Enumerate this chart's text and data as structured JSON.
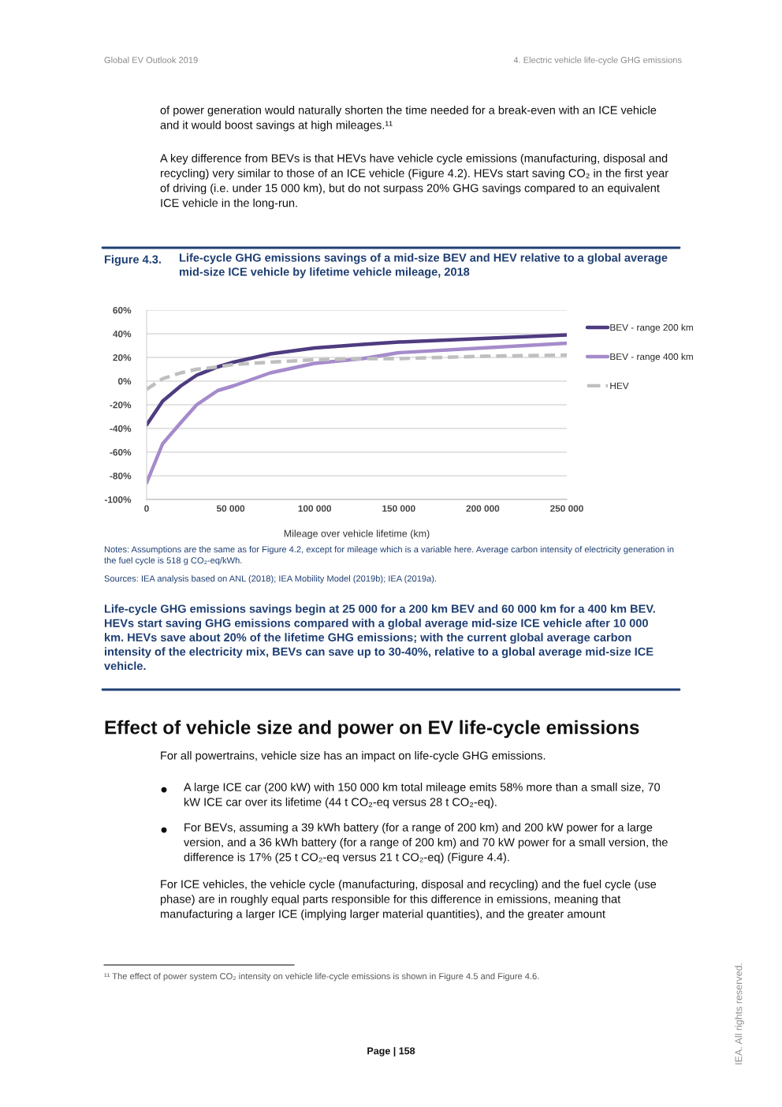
{
  "chart_data": {
    "type": "line",
    "title": "Life-cycle GHG emissions savings of a mid-size BEV and HEV relative to a global average mid-size ICE vehicle by lifetime vehicle mileage, 2018",
    "xlabel": "Mileage over vehicle lifetime (km)",
    "x": [
      0,
      9500,
      20400,
      29800,
      42300,
      51700,
      73700,
      100000,
      128500,
      150000,
      200000,
      250000
    ],
    "series": [
      {
        "name": "BEV - range 200 km",
        "color": "#4e3b80",
        "line_style": "solid",
        "values": [
          -37,
          -17,
          -4,
          5,
          12,
          16,
          23,
          28,
          31,
          33,
          36,
          39
        ]
      },
      {
        "name": "BEV - range 400 km",
        "color": "#a58bcb",
        "line_style": "solid",
        "values": [
          -86,
          -53,
          -35,
          -20,
          -8,
          -4,
          7,
          15,
          19,
          24,
          28,
          32
        ]
      },
      {
        "name": "HEV",
        "color": "#bfbfbf",
        "line_style": "dashed",
        "values": [
          -7,
          2,
          7,
          10,
          12,
          14,
          16,
          18,
          19,
          19,
          21,
          22
        ]
      }
    ],
    "xlim": [
      0,
      250000
    ],
    "xticks": [
      0,
      {
        "value": 50000,
        "label": "50 000"
      },
      {
        "value": 100000,
        "label": "100 000"
      },
      {
        "value": 150000,
        "label": "150 000"
      },
      {
        "value": 200000,
        "label": "200 000"
      },
      {
        "value": 250000,
        "label": "250 000"
      }
    ],
    "ylim": [
      -100,
      60
    ],
    "yticks": [
      {
        "value": -100,
        "label": "-100%"
      },
      {
        "value": -80,
        "label": "-80%"
      },
      {
        "value": -60,
        "label": "-60%"
      },
      {
        "value": -40,
        "label": "-40%"
      },
      {
        "value": -20,
        "label": "-20%"
      },
      {
        "value": 0,
        "label": "0%"
      },
      {
        "value": 20,
        "label": "20%"
      },
      {
        "value": 40,
        "label": "40%"
      },
      {
        "value": 60,
        "label": "60%"
      }
    ],
    "grid": "y",
    "legend": "right",
    "annotations": [
      "Global EV Outlook 2019",
      "4. Electric vehicle life-cycle GHG emissions",
      "of power generation would naturally shorten the time needed for a break-even with an ICE vehicle and it would boost savings at high mileages.¹¹",
      "A key difference from BEVs is that HEVs have vehicle cycle emissions (manufacturing, disposal and recycling) very similar to those of an ICE vehicle (Figure 4.2). HEVs start saving CO₂ in the first year of driving (i.e. under 15 000 km), but do not surpass 20% GHG savings compared to an equivalent ICE vehicle in the long-run.",
      "Figure 4.3.",
      "Notes: Assumptions are the same as for Figure 4.2, except for mileage which is a variable here. Average carbon intensity of electricity generation in the fuel cycle is 518 g CO₂-eq/kWh.",
      "Sources: IEA analysis based on ANL (2018); IEA Mobility Model (2019b); IEA (2019a).",
      "Life-cycle GHG emissions savings begin at 25 000 for a 200 km BEV and 60 000 km for a 400 km BEV. HEVs start saving GHG emissions compared with a global average mid-size ICE vehicle after 10 000 km. HEVs save about 20% of the lifetime GHG emissions; with the current global average carbon intensity of the electricity mix, BEVs can save up to 30-40%, relative to a global average mid-size ICE vehicle.",
      "Effect of vehicle size and power on EV life-cycle emissions",
      "For all powertrains, vehicle size has an impact on life-cycle GHG emissions.",
      "A large ICE car (200 kW) with 150 000 km total mileage emits 58% more than a small size, 70 kW ICE car over its lifetime (44 t CO₂-eq versus 28 t CO₂-eq).",
      "For BEVs, assuming a 39 kWh battery (for a range of 200 km) and 200 kW power for a large version, and a 36 kWh battery (for a range of 200 km) and 70 kW power for a small version, the difference is 17% (25 t CO₂-eq versus 21 t CO₂-eq) (Figure 4.4).",
      "For ICE vehicles, the vehicle cycle (manufacturing, disposal and recycling) and the fuel cycle (use phase) are in roughly equal parts responsible for this difference in emissions, meaning that manufacturing a larger ICE (implying larger material quantities), and the greater amount",
      "¹¹ The effect of power system CO₂ intensity on vehicle life-cycle emissions is shown in Figure 4.5 and Figure 4.6.",
      "Page | 158",
      "IEA. All rights reserved."
    ]
  }
}
